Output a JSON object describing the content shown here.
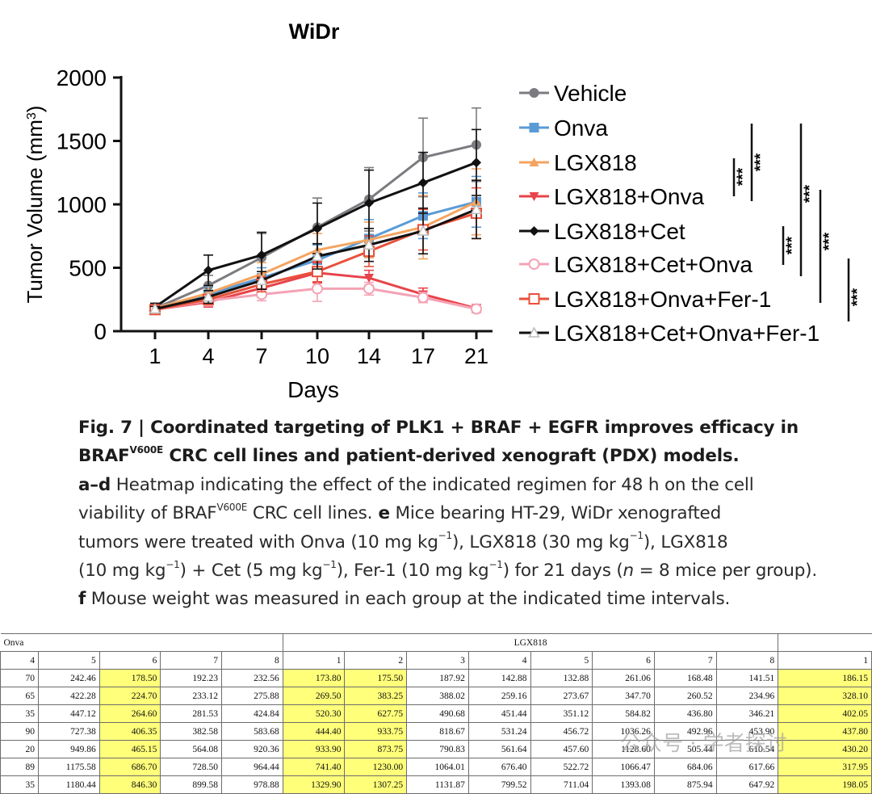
{
  "chart_data": {
    "type": "line",
    "title": "WiDr",
    "xlabel": "Days",
    "ylabel": "Tumor Volume (mm³)",
    "ylabel_main": "Tumor Volume (mm",
    "ylabel_sup": "3",
    "ylabel_close": ")",
    "categories": [
      "1",
      "4",
      "7",
      "10",
      "14",
      "17",
      "21"
    ],
    "ylim": [
      0,
      2000
    ],
    "yticks": [
      "0",
      "500",
      "1000",
      "1500",
      "2000"
    ],
    "grid": false,
    "legend_position": "right",
    "series": [
      {
        "name": "Vehicle",
        "color": "#7b7b80",
        "marker": "circle",
        "values": [
          180,
          360,
          580,
          820,
          1040,
          1370,
          1470
        ],
        "errors": [
          40,
          80,
          190,
          230,
          250,
          310,
          290
        ]
      },
      {
        "name": "Onva",
        "color": "#5b9bd5",
        "marker": "square",
        "values": [
          185,
          290,
          420,
          560,
          730,
          910,
          1020
        ],
        "errors": [
          30,
          60,
          80,
          120,
          150,
          180,
          200
        ]
      },
      {
        "name": "LGX818",
        "color": "#f4a460",
        "marker": "triangle-up",
        "values": [
          180,
          300,
          450,
          640,
          720,
          820,
          1020
        ],
        "errors": [
          30,
          60,
          90,
          130,
          140,
          250,
          260
        ]
      },
      {
        "name": "LGX818+Onva",
        "color": "#e8434a",
        "marker": "triangle-down",
        "values": [
          170,
          230,
          340,
          460,
          420,
          290,
          180
        ],
        "errors": [
          20,
          40,
          60,
          80,
          60,
          50,
          30
        ]
      },
      {
        "name": "LGX818+Cet",
        "color": "#111111",
        "marker": "diamond",
        "values": [
          190,
          480,
          600,
          810,
          1010,
          1170,
          1330
        ],
        "errors": [
          30,
          120,
          180,
          200,
          260,
          240,
          260
        ]
      },
      {
        "name": "LGX818+Cet+Onva",
        "color": "#f4a3b5",
        "marker": "circle-open",
        "values": [
          170,
          240,
          290,
          335,
          335,
          265,
          175
        ],
        "errors": [
          20,
          40,
          50,
          100,
          50,
          40,
          30
        ]
      },
      {
        "name": "LGX818+Onva+Fer-1",
        "color": "#e8503a",
        "marker": "square-open",
        "values": [
          170,
          250,
          370,
          470,
          630,
          800,
          930
        ],
        "errors": [
          20,
          40,
          60,
          80,
          120,
          160,
          200
        ]
      },
      {
        "name": "LGX818+Cet+Onva+Fer-1",
        "color": "#111111",
        "marker": "triangle-open",
        "values": [
          175,
          270,
          400,
          590,
          680,
          790,
          960
        ],
        "errors": [
          20,
          50,
          70,
          100,
          130,
          180,
          230
        ]
      }
    ],
    "significance": [
      "***",
      "***",
      "***",
      "***",
      "***",
      "***"
    ]
  },
  "caption": {
    "line1_bold": "Fig. 7 | Coordinated targeting of PLK1 + BRAF  + EGFR improves efficacy in",
    "line2_bold_pre": "BRAF",
    "line2_bold_sup": "V600E",
    "line2_bold_post": " CRC cell lines and patient-derived xenograft (PDX) models.",
    "line3_bold": "a–d",
    "line3_text": " Heatmap indicating the effect of the indicated regimen for 48 h on the cell",
    "line4_pre": "viability of BRAF",
    "line4_sup": "V600E",
    "line4_bold": " CRC cell lines.",
    "line4_bold2": " e",
    "line4_post": " Mice bearing HT-29, WiDr xenografted",
    "line5_a": "tumors were treated with Onva (10 mg kg",
    "line5_s1": "−1",
    "line5_b": "), LGX818 (30 mg kg",
    "line5_s2": "−1",
    "line5_c": "), LGX818",
    "line6_a": "(10 mg kg",
    "line6_s1": "−1",
    "line6_b": ") + Cet (5 mg kg",
    "line6_s2": "−1",
    "line6_c": "), Fer-1 (10 mg kg",
    "line6_s3": "−1",
    "line6_d": ") for 21 days (",
    "line6_n": "n",
    "line6_e": " = 8 mice per group).",
    "line7_bold": "f",
    "line7_text": " Mouse weight was measured in each group at the indicated time intervals."
  },
  "table": {
    "group_onva": "Onva",
    "group_lgx": "LGX818",
    "header": [
      "4",
      "5",
      "6",
      "7",
      "8",
      "1",
      "2",
      "3",
      "4",
      "5",
      "6",
      "7",
      "8",
      "1"
    ],
    "rows": [
      [
        "70",
        "242.46",
        "178.50",
        "192.23",
        "232.56",
        "173.80",
        "175.50",
        "187.92",
        "142.88",
        "132.88",
        "261.06",
        "168.48",
        "141.51",
        "186.15"
      ],
      [
        "65",
        "422.28",
        "224.70",
        "233.12",
        "275.88",
        "269.50",
        "383.25",
        "388.02",
        "259.16",
        "273.67",
        "347.70",
        "260.52",
        "234.96",
        "328.10"
      ],
      [
        "35",
        "447.12",
        "264.60",
        "281.53",
        "424.84",
        "520.30",
        "627.75",
        "490.68",
        "451.44",
        "351.12",
        "584.82",
        "436.80",
        "346.21",
        "402.05"
      ],
      [
        "90",
        "727.38",
        "406.35",
        "382.58",
        "583.68",
        "444.40",
        "933.75",
        "818.67",
        "531.24",
        "456.72",
        "1036.26",
        "492.96",
        "453.90",
        "437.80"
      ],
      [
        "20",
        "949.86",
        "465.15",
        "564.08",
        "920.36",
        "933.90",
        "873.75",
        "790.83",
        "561.64",
        "457.60",
        "1128.60",
        "505.44",
        "610.54",
        "430.20"
      ],
      [
        "89",
        "1175.58",
        "686.70",
        "728.50",
        "964.44",
        "741.40",
        "1230.00",
        "1064.01",
        "676.40",
        "522.72",
        "1066.47",
        "684.06",
        "617.66",
        "317.95"
      ],
      [
        "35",
        "1180.44",
        "846.30",
        "899.58",
        "978.88",
        "1329.90",
        "1307.25",
        "1131.87",
        "799.52",
        "711.04",
        "1393.08",
        "875.94",
        "647.92",
        "198.05"
      ]
    ],
    "highlight_columns": [
      2,
      5,
      6,
      13
    ],
    "highlight_color": "#ffff7a"
  },
  "watermark": "公众号 · 学者探讨"
}
